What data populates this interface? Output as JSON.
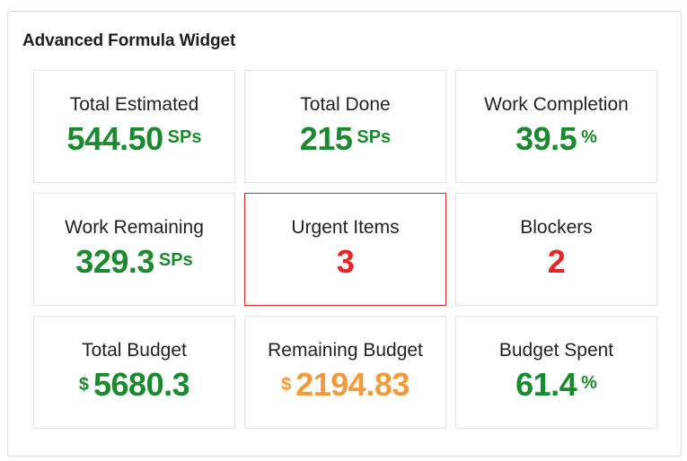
{
  "widget": {
    "title": "Advanced Formula Widget"
  },
  "tiles": [
    {
      "label": "Total Estimated",
      "value": "544.50",
      "unit": "SPs",
      "color": "#1b8a2e"
    },
    {
      "label": "Total Done",
      "value": "215",
      "unit": "SPs",
      "color": "#1b8a2e"
    },
    {
      "label": "Work Completion",
      "value": "39.5",
      "unit": "%",
      "color": "#1b8a2e"
    },
    {
      "label": "Work Remaining",
      "value": "329.3",
      "unit": "SPs",
      "color": "#1b8a2e"
    },
    {
      "label": "Urgent Items",
      "value": "3",
      "color": "#ea2323",
      "border_color": "#d12b2b"
    },
    {
      "label": "Blockers",
      "value": "2",
      "color": "#ea2323"
    },
    {
      "label": "Total Budget",
      "prefix": "$",
      "value": "5680.3",
      "color": "#1b8a2e"
    },
    {
      "label": "Remaining Budget",
      "prefix": "$",
      "value": "2194.83",
      "color": "#f29b3c"
    },
    {
      "label": "Budget Spent",
      "value": "61.4",
      "unit": "%",
      "color": "#1b8a2e"
    }
  ]
}
